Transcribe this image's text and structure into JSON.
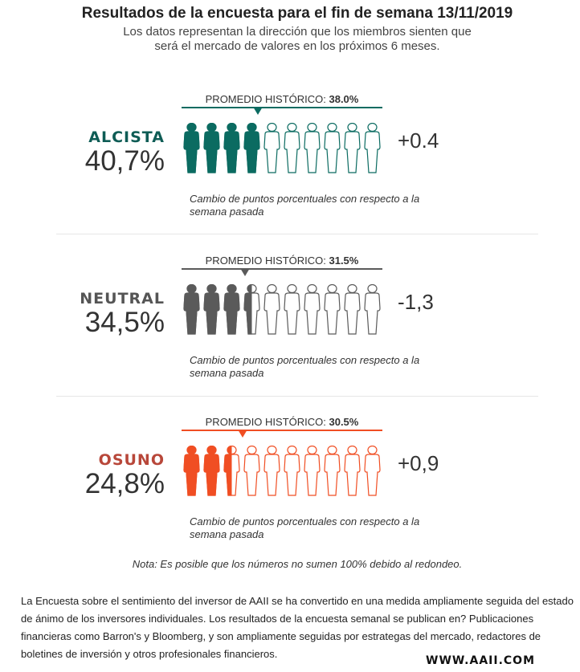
{
  "header": {
    "title": "Resultados de la encuesta para el fin de semana 13/11/2019",
    "subtitle_line1": "Los datos representan la dirección que los miembros sienten que",
    "subtitle_line2": "será el mercado de valores en los próximos 6 meses."
  },
  "sections": [
    {
      "label": "ALCISTA",
      "percent_text": "40,7%",
      "percent": 40.7,
      "avg_label": "PROMEDIO HISTÓRICO: ",
      "avg_value": "38.0%",
      "avg": 38.0,
      "change": "+0.4",
      "caption": "Cambio de puntos porcentuales con respecto a la semana pasada",
      "label_color": "#0e5c55",
      "color": "#0b6b61",
      "figures_filled": 4
    },
    {
      "label": "NEUTRAL",
      "percent_text": "34,5%",
      "percent": 34.5,
      "avg_label": "PROMEDIO HISTÓRICO: ",
      "avg_value": "31.5%",
      "avg": 31.5,
      "change": "-1,3",
      "caption": "Cambio de puntos porcentuales con respecto a la semana pasada",
      "label_color": "#555555",
      "color": "#5a5a5a",
      "figures_filled": 3.5
    },
    {
      "label": "OSUNO",
      "percent_text": "24,8%",
      "percent": 24.8,
      "avg_label": "PROMEDIO HISTÓRICO: ",
      "avg_value": "30.5%",
      "avg": 30.5,
      "change": "+0,9",
      "caption": "Cambio de puntos porcentuales con respecto a la semana pasada",
      "label_color": "#b8473a",
      "color": "#f04e23",
      "figures_filled": 2.5
    }
  ],
  "note": "Nota: Es posible que los números no sumen 100% debido al redondeo.",
  "paragraph": "La Encuesta sobre el sentimiento del inversor de AAII se ha convertido en una medida ampliamente seguida del estado de ánimo de los inversores individuales. Los resultados de la encuesta semanal se publican en? Publicaciones financieras como Barron's y Bloomberg, y son ampliamente seguidas por estrategas del mercado, redactores de boletines de inversión y otros profesionales financieros.",
  "footer": {
    "website": "WWW.AAII.COM"
  }
}
